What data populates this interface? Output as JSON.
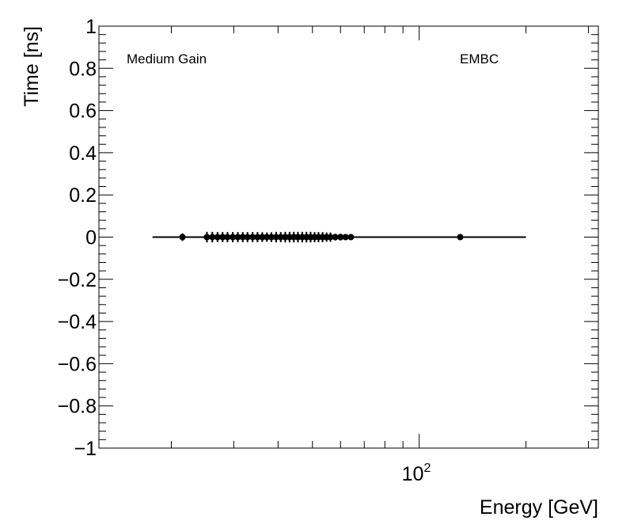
{
  "chart_data": {
    "type": "scatter",
    "xlabel": "Energy [GeV]",
    "ylabel": "Time [ns]",
    "x_scale": "log",
    "xlim": [
      12.5,
      320
    ],
    "ylim": [
      -1,
      1
    ],
    "grid": false,
    "y_ticks": [
      {
        "value": 1,
        "label": "1"
      },
      {
        "value": 0.8,
        "label": "0.8"
      },
      {
        "value": 0.6,
        "label": "0.6"
      },
      {
        "value": 0.4,
        "label": "0.4"
      },
      {
        "value": 0.2,
        "label": "0.2"
      },
      {
        "value": 0,
        "label": "0"
      },
      {
        "value": -0.2,
        "label": "−0.2"
      },
      {
        "value": -0.4,
        "label": "−0.4"
      },
      {
        "value": -0.6,
        "label": "−0.6"
      },
      {
        "value": -0.8,
        "label": "−0.8"
      },
      {
        "value": -1,
        "label": "−1"
      }
    ],
    "x_ticks": [
      {
        "value": 100,
        "base": "10",
        "exponent": "2"
      }
    ],
    "annotations": [
      "Medium Gain",
      "EMBC"
    ],
    "fit_line": {
      "x": [
        17.7,
        200
      ],
      "y": [
        0,
        0
      ]
    },
    "points": [
      {
        "x": 21.5,
        "y": 0,
        "yerr": 0.018
      },
      {
        "x": 25.2,
        "y": 0,
        "yerr": 0.025
      },
      {
        "x": 26.1,
        "y": 0,
        "yerr": 0.025
      },
      {
        "x": 27.0,
        "y": 0,
        "yerr": 0.024
      },
      {
        "x": 27.9,
        "y": 0,
        "yerr": 0.024
      },
      {
        "x": 28.8,
        "y": 0,
        "yerr": 0.024
      },
      {
        "x": 29.8,
        "y": 0,
        "yerr": 0.024
      },
      {
        "x": 30.8,
        "y": 0,
        "yerr": 0.024
      },
      {
        "x": 31.8,
        "y": 0,
        "yerr": 0.024
      },
      {
        "x": 32.8,
        "y": 0,
        "yerr": 0.024
      },
      {
        "x": 33.9,
        "y": 0,
        "yerr": 0.024
      },
      {
        "x": 35.0,
        "y": 0,
        "yerr": 0.024
      },
      {
        "x": 36.1,
        "y": 0,
        "yerr": 0.023
      },
      {
        "x": 37.2,
        "y": 0,
        "yerr": 0.022
      },
      {
        "x": 38.3,
        "y": 0,
        "yerr": 0.023
      },
      {
        "x": 39.5,
        "y": 0,
        "yerr": 0.025
      },
      {
        "x": 40.7,
        "y": 0,
        "yerr": 0.024
      },
      {
        "x": 41.9,
        "y": 0,
        "yerr": 0.025
      },
      {
        "x": 43.1,
        "y": 0,
        "yerr": 0.025
      },
      {
        "x": 44.3,
        "y": 0,
        "yerr": 0.025
      },
      {
        "x": 45.5,
        "y": 0,
        "yerr": 0.025
      },
      {
        "x": 46.8,
        "y": 0,
        "yerr": 0.025
      },
      {
        "x": 48.1,
        "y": 0,
        "yerr": 0.025
      },
      {
        "x": 49.4,
        "y": 0,
        "yerr": 0.025
      },
      {
        "x": 50.7,
        "y": 0,
        "yerr": 0.024
      },
      {
        "x": 52.0,
        "y": 0,
        "yerr": 0.024
      },
      {
        "x": 53.4,
        "y": 0,
        "yerr": 0.024
      },
      {
        "x": 54.8,
        "y": 0,
        "yerr": 0.022
      },
      {
        "x": 56.2,
        "y": 0,
        "yerr": 0.022
      },
      {
        "x": 58.0,
        "y": 0,
        "yerr": 0.016
      },
      {
        "x": 60.0,
        "y": 0,
        "yerr": 0.016
      },
      {
        "x": 62.0,
        "y": 0,
        "yerr": 0.014
      },
      {
        "x": 64.2,
        "y": 0,
        "yerr": 0.013
      },
      {
        "x": 130.5,
        "y": 0,
        "yerr": 0.0
      }
    ]
  }
}
